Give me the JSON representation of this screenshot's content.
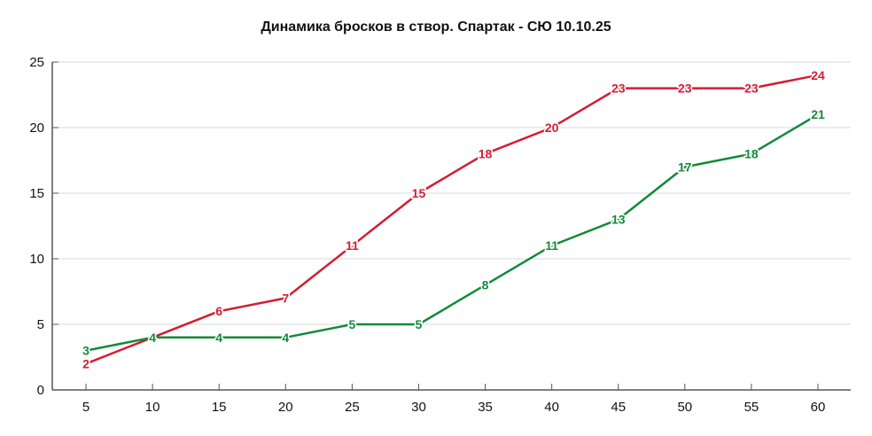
{
  "title": "Динамика бросков в створ. Спартак - СЮ 10.10.25",
  "colors": {
    "series_red": "#d41c32",
    "series_green": "#138a3a",
    "grid": "#d9d9d9",
    "axis": "#555555"
  },
  "chart_data": {
    "type": "line",
    "title": "Динамика бросков в створ. Спартак - СЮ 10.10.25",
    "xlabel": "",
    "ylabel": "",
    "x": [
      5,
      10,
      15,
      20,
      25,
      30,
      35,
      40,
      45,
      50,
      55,
      60
    ],
    "x_ticks": [
      "5",
      "10",
      "15",
      "20",
      "25",
      "30",
      "35",
      "40",
      "45",
      "50",
      "55",
      "60"
    ],
    "y_ticks": [
      "0",
      "5",
      "10",
      "15",
      "20",
      "25"
    ],
    "ylim": [
      0,
      25
    ],
    "grid": true,
    "legend": null,
    "series": [
      {
        "name": "red",
        "color": "#d41c32",
        "values": [
          2,
          4,
          6,
          7,
          11,
          15,
          18,
          20,
          23,
          23,
          23,
          24
        ]
      },
      {
        "name": "green",
        "color": "#138a3a",
        "values": [
          3,
          4,
          4,
          4,
          5,
          5,
          8,
          11,
          13,
          17,
          18,
          21
        ]
      }
    ]
  }
}
